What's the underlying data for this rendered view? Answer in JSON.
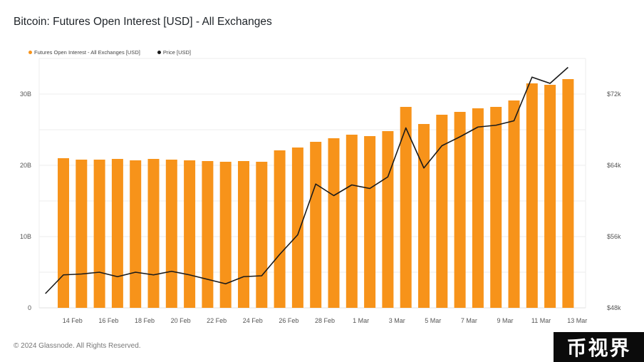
{
  "title": "Bitcoin: Futures Open Interest [USD] - All Exchanges",
  "footer": "© 2024 Glassnode. All Rights Reserved.",
  "watermark": "币视界",
  "colors": {
    "bar": "#f7931a",
    "price_line": "#1a1a1a",
    "grid": "#eeeeee"
  },
  "chart_data": {
    "type": "bar",
    "title": "Bitcoin: Futures Open Interest [USD] - All Exchanges",
    "grid": true,
    "legend_position": "top-left",
    "x_tick_labels": [
      "14 Feb",
      "16 Feb",
      "18 Feb",
      "20 Feb",
      "22 Feb",
      "24 Feb",
      "26 Feb",
      "28 Feb",
      "1 Mar",
      "3 Mar",
      "5 Mar",
      "7 Mar",
      "9 Mar",
      "11 Mar",
      "13 Mar"
    ],
    "x_tick_indices": [
      1,
      3,
      5,
      7,
      9,
      11,
      13,
      15,
      17,
      19,
      21,
      23,
      25,
      27,
      29
    ],
    "y_left": {
      "ticks": [
        "0",
        "10B",
        "20B",
        "30B"
      ],
      "tick_values": [
        0,
        10,
        20,
        30
      ],
      "ylim": [
        0,
        35
      ]
    },
    "y_right": {
      "ticks": [
        "$48k",
        "$56k",
        "$64k",
        "$72k"
      ],
      "tick_values": [
        48,
        56,
        64,
        72
      ],
      "ylim": [
        48,
        76
      ]
    },
    "series": [
      {
        "name": "Futures Open Interest - All Exchanges [USD]",
        "type": "bar",
        "axis": "left",
        "values": [
          21.0,
          20.8,
          20.8,
          20.9,
          20.7,
          20.9,
          20.8,
          20.7,
          20.6,
          20.5,
          20.6,
          20.5,
          22.1,
          22.5,
          23.3,
          23.8,
          24.3,
          24.1,
          24.8,
          28.2,
          25.8,
          27.1,
          27.5,
          28.0,
          28.2,
          29.1,
          31.5,
          31.3,
          32.1
        ]
      },
      {
        "name": "Price [USD]",
        "type": "line",
        "axis": "right",
        "x_offset": -1,
        "values": [
          49.6,
          51.7,
          51.8,
          52.0,
          51.5,
          52.0,
          51.7,
          52.1,
          51.7,
          51.2,
          50.7,
          51.5,
          51.6,
          54.0,
          56.2,
          61.9,
          60.6,
          61.8,
          61.4,
          62.7,
          68.2,
          63.7,
          66.2,
          67.2,
          68.3,
          68.5,
          69.0,
          73.9,
          73.2,
          75.0
        ]
      }
    ]
  }
}
